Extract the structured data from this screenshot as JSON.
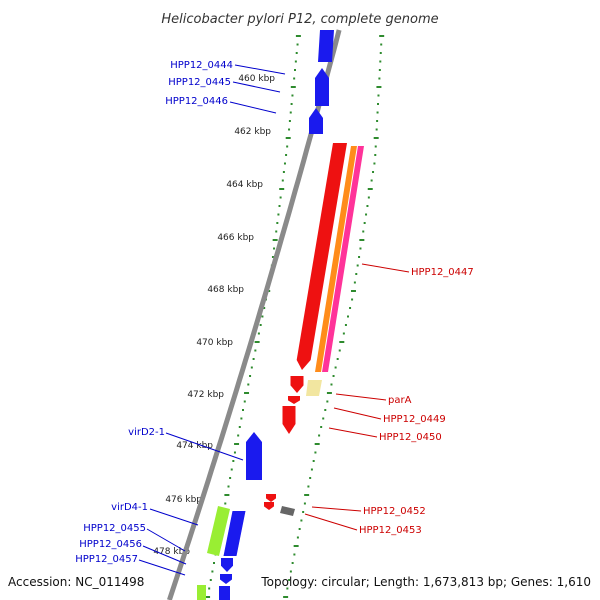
{
  "title": "Helicobacter pylori P12, complete genome",
  "footer": {
    "accession": "Accession: NC_011498",
    "topology": "Topology: circular; Length: 1,673,813 bp; Genes: 1,610"
  },
  "colors": {
    "background": "#ffffff",
    "backbone": "#8a8a8a",
    "tick": "#2e8b2e",
    "label_blue": "#0000cc",
    "label_red": "#cc0000",
    "feature_blue": "#1a1aee",
    "feature_red": "#ee1111",
    "feature_orange": "#ff8c1a",
    "feature_pink": "#ff3399",
    "feature_cream": "#f2e6a0",
    "feature_green": "#99ee33",
    "feature_gray": "#666666"
  },
  "kbp_labels": [
    "460 kbp",
    "462 kbp",
    "464 kbp",
    "466 kbp",
    "468 kbp",
    "470 kbp",
    "472 kbp",
    "474 kbp",
    "476 kbp",
    "478 kbp"
  ],
  "gene_labels_left": [
    {
      "text": "HPP12_0444",
      "color": "blue"
    },
    {
      "text": "HPP12_0445",
      "color": "blue"
    },
    {
      "text": "HPP12_0446",
      "color": "blue"
    },
    {
      "text": "virD2-1",
      "color": "blue"
    },
    {
      "text": "virD4-1",
      "color": "blue"
    },
    {
      "text": "HPP12_0455",
      "color": "blue"
    },
    {
      "text": "HPP12_0456",
      "color": "blue"
    },
    {
      "text": "HPP12_0457",
      "color": "blue"
    }
  ],
  "gene_labels_right": [
    {
      "text": "HPP12_0447",
      "color": "red"
    },
    {
      "text": "parA",
      "color": "red"
    },
    {
      "text": "HPP12_0449",
      "color": "red"
    },
    {
      "text": "HPP12_0450",
      "color": "red"
    },
    {
      "text": "HPP12_0452",
      "color": "red"
    },
    {
      "text": "HPP12_0453",
      "color": "red"
    }
  ]
}
